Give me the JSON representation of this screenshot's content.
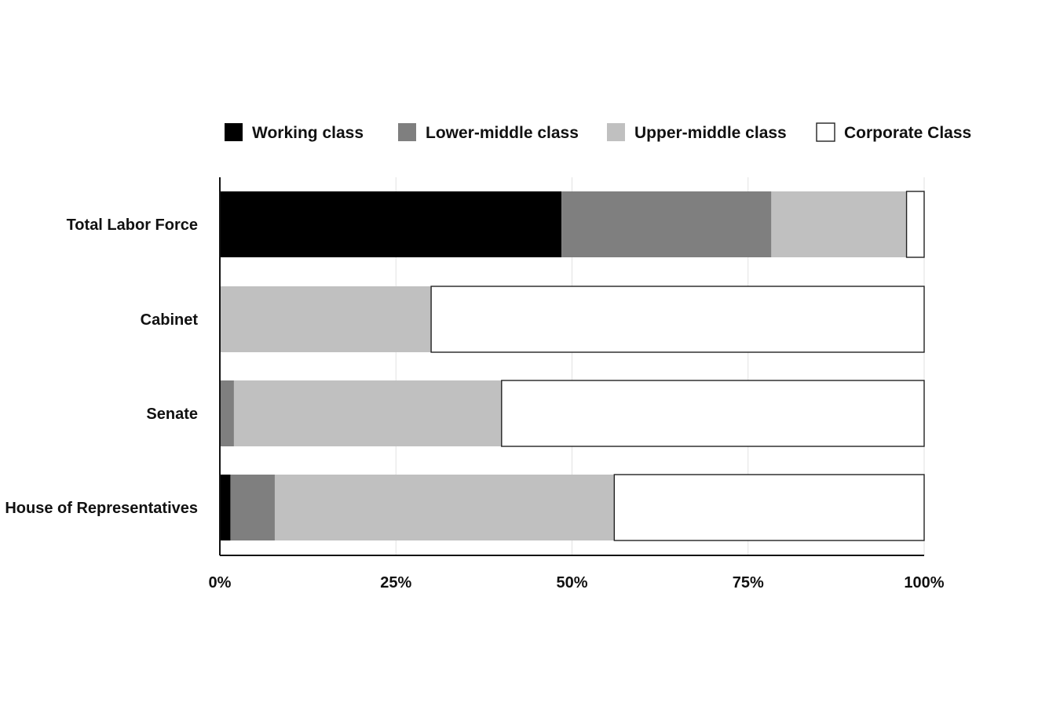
{
  "chart_data": {
    "type": "bar",
    "orientation": "horizontal",
    "stacked": true,
    "categories": [
      "Total Labor Force",
      "Cabinet",
      "Senate",
      "House of Representatives"
    ],
    "series": [
      {
        "name": "Working class",
        "values": [
          48.5,
          0,
          0,
          1.5
        ],
        "color": "#000000"
      },
      {
        "name": "Lower-middle class",
        "values": [
          29.8,
          0,
          2,
          6.3
        ],
        "color": "#7f7f7f"
      },
      {
        "name": "Upper-middle class",
        "values": [
          19.2,
          30,
          38,
          48.2
        ],
        "color": "#c0c0c0"
      },
      {
        "name": "Corporate Class",
        "values": [
          2.5,
          70,
          60,
          44
        ],
        "color": "#ffffff"
      }
    ],
    "xlim": [
      0,
      100
    ],
    "xticks": [
      0,
      25,
      50,
      75,
      100
    ],
    "xtick_labels": [
      "0%",
      "25%",
      "50%",
      "75%",
      "100%"
    ],
    "legend_position": "top",
    "grid": "vertical"
  }
}
